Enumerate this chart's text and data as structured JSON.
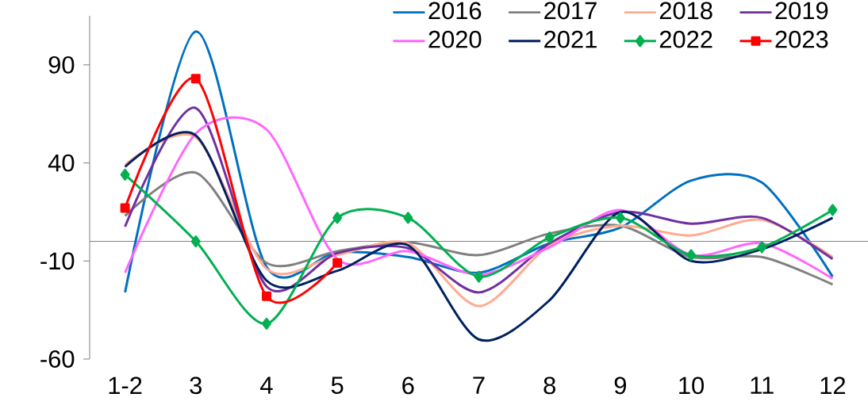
{
  "chart_data": {
    "type": "line",
    "categories": [
      "1-2",
      "3",
      "4",
      "5",
      "6",
      "7",
      "8",
      "9",
      "10",
      "11",
      "12"
    ],
    "ylim": [
      -60,
      115
    ],
    "yticks": [
      -60,
      -10,
      40,
      90
    ],
    "grid": false,
    "legend": "top right",
    "marker": "none",
    "line_style": "solid",
    "series": [
      {
        "name": "2016",
        "color": "#0070c0",
        "values": [
          -26,
          107,
          -13,
          -5.5,
          -8,
          -16,
          -1,
          7,
          31,
          30,
          -18
        ]
      },
      {
        "name": "2017",
        "color": "#808080",
        "values": [
          13,
          35,
          -11,
          -5,
          -0.5,
          -7,
          4,
          8,
          -8,
          -8,
          -22
        ]
      },
      {
        "name": "2018",
        "color": "#ffab91",
        "values": [
          39,
          53,
          -14,
          -7,
          -1,
          -33,
          -2,
          8,
          3,
          11,
          -8
        ]
      },
      {
        "name": "2019",
        "color": "#7030a0",
        "values": [
          7.5,
          68,
          -23,
          -6,
          -3.5,
          -26,
          -1,
          15,
          9,
          12,
          -9
        ]
      },
      {
        "name": "2020",
        "color": "#ff66ff",
        "values": [
          -16,
          55,
          57,
          -9,
          -5,
          -17,
          -3,
          16,
          -7,
          -1,
          -19
        ]
      },
      {
        "name": "2021",
        "color": "#002060",
        "values": [
          38,
          54,
          -20,
          -15,
          -2,
          -50,
          -30,
          15,
          -10,
          -4,
          12
        ]
      },
      {
        "name": "2022",
        "color": "#00b050",
        "marker": "diamond",
        "values": [
          34,
          0,
          -42,
          12,
          12,
          -18,
          2,
          12,
          -7,
          -3,
          16
        ]
      },
      {
        "name": "2023",
        "color": "#ff0000",
        "marker": "square",
        "values": [
          17,
          83,
          -28,
          -11,
          null,
          null,
          null,
          null,
          null,
          null,
          null
        ]
      }
    ]
  }
}
